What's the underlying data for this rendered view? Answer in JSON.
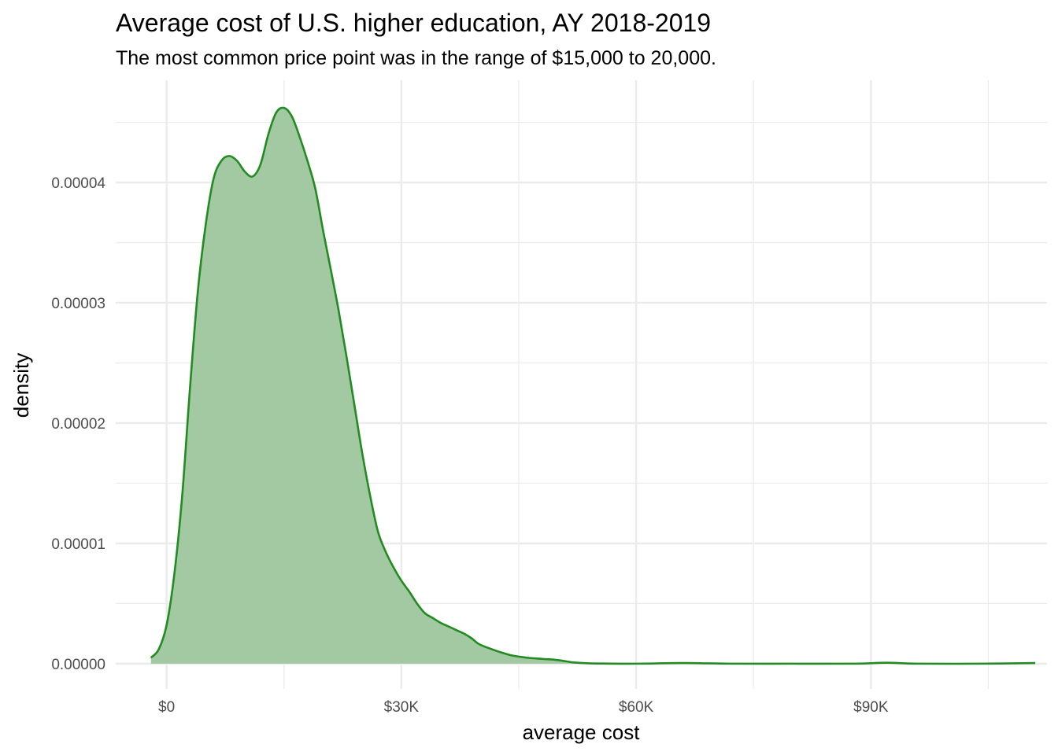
{
  "chart_data": {
    "type": "area",
    "title": "Average cost of U.S. higher education, AY 2018-2019",
    "subtitle": "The most common price point was in the range of $15,000 to 20,000.",
    "xlabel": "average cost",
    "ylabel": "density",
    "xlim": [
      -6500,
      112500
    ],
    "ylim": [
      -2.1e-06,
      4.85e-05
    ],
    "x_ticks": [
      0,
      30000,
      60000,
      90000
    ],
    "x_tick_labels": [
      "$0",
      "$30K",
      "$60K",
      "$90K"
    ],
    "x_minor_ticks": [
      15000,
      45000,
      75000,
      105000
    ],
    "y_ticks": [
      0,
      1e-05,
      2e-05,
      3e-05,
      4e-05
    ],
    "y_tick_labels": [
      "0.00000",
      "0.00001",
      "0.00002",
      "0.00003",
      "0.00004"
    ],
    "y_minor_ticks": [
      5e-06,
      1.5e-05,
      2.5e-05,
      3.5e-05,
      4.5e-05
    ],
    "grid": true,
    "colors": {
      "line": "#228b22",
      "fill": "#a3c9a2",
      "grid": "#ebebeb"
    },
    "series": [
      {
        "x": [
          -2000,
          -1000,
          0,
          1000,
          2000,
          3000,
          4000,
          5000,
          6000,
          7000,
          8000,
          9000,
          10000,
          11000,
          12000,
          13000,
          14000,
          15000,
          16000,
          17000,
          18000,
          19000,
          20000,
          21000,
          22000,
          23000,
          24000,
          25000,
          26000,
          27000,
          28000,
          29000,
          30000,
          31000,
          32000,
          33000,
          34000,
          35000,
          36000,
          37000,
          38000,
          39000,
          40000,
          42000,
          44000,
          46000,
          48000,
          50000,
          52000,
          54000,
          56000,
          60000,
          66000,
          72000,
          80000,
          88000,
          92000,
          96000,
          104000,
          111000
        ],
        "y": [
          5e-07,
          1.2e-06,
          3.2e-06,
          7.5e-06,
          1.4e-05,
          2.3e-05,
          3.1e-05,
          3.65e-05,
          4.03e-05,
          4.18e-05,
          4.22e-05,
          4.18e-05,
          4.09e-05,
          4.05e-05,
          4.15e-05,
          4.4e-05,
          4.58e-05,
          4.62e-05,
          4.55e-05,
          4.38e-05,
          4.18e-05,
          3.95e-05,
          3.6e-05,
          3.27e-05,
          2.93e-05,
          2.55e-05,
          2.15e-05,
          1.75e-05,
          1.4e-05,
          1.1e-05,
          9.3e-06,
          8e-06,
          6.9e-06,
          6e-06,
          5e-06,
          4.2e-06,
          3.8e-06,
          3.4e-06,
          3.1e-06,
          2.8e-06,
          2.5e-06,
          2.1e-06,
          1.6e-06,
          1.1e-06,
          7e-07,
          5e-07,
          4e-07,
          3e-07,
          1e-07,
          3e-08,
          1e-08,
          0.0,
          5e-08,
          0.0,
          0.0,
          0.0,
          8e-08,
          0.0,
          0.0,
          5e-08
        ]
      }
    ]
  }
}
